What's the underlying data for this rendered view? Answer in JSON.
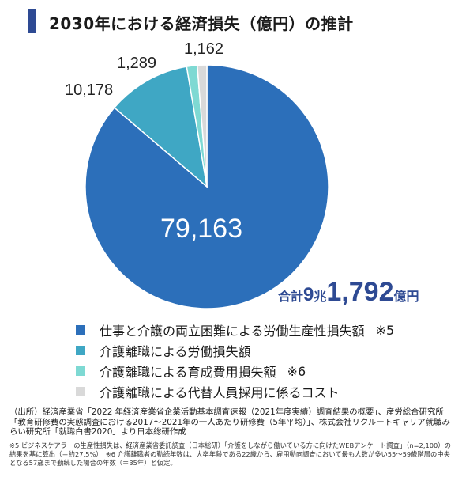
{
  "title": "2030年における経済損失（億円）の推計",
  "chart_data": {
    "type": "pie",
    "title": "2030年における経済損失（億円）の推計",
    "unit": "億円",
    "start_angle_deg": 0,
    "direction": "clockwise",
    "slices": [
      {
        "label": "仕事と介護の両立困難による労働生産性損失額",
        "value": 79163,
        "display": "79,163",
        "color": "#2c6fba",
        "note": "※5"
      },
      {
        "label": "介護離職による労働損失額",
        "value": 10178,
        "display": "10,178",
        "color": "#3fa7c4",
        "note": ""
      },
      {
        "label": "介護離職による育成費用損失額",
        "value": 1289,
        "display": "1,289",
        "color": "#7ed9d3",
        "note": "※6"
      },
      {
        "label": "介護離職による代替人員採用に係るコスト",
        "value": 1162,
        "display": "1,162",
        "color": "#d9d9d9",
        "note": ""
      }
    ],
    "total": {
      "label": "合計",
      "num1": "9",
      "unit1": "兆",
      "num2": "1,792",
      "unit2": "億円"
    }
  },
  "source": "（出所）経済産業省「2022 年経済産業省企業活動基本調査速報（2021年度実績）調査結果の概要」、産労総合研究所「教育研修費の実態調査における2017～2021年の一人あたり研修費（5年平均）」、株式会社リクルートキャリア就職みらい研究所「就職白書2020」より日本総研作成",
  "note": "※5 ビジネスケアラーの生産性損失は、経済産業省委託調査（日本総研）「介護をしながら働いている方に向けたWEBアンケート調査」（n=2,100）の結果を基に算出（＝約27.5%）　※6 介護離職者の勤続年数は、大卒年齢である22歳から、雇用動向調査において最も人数が多い55～59歳階層の中央となる57歳まで勤続した場合の年数（＝35年）と仮定。"
}
